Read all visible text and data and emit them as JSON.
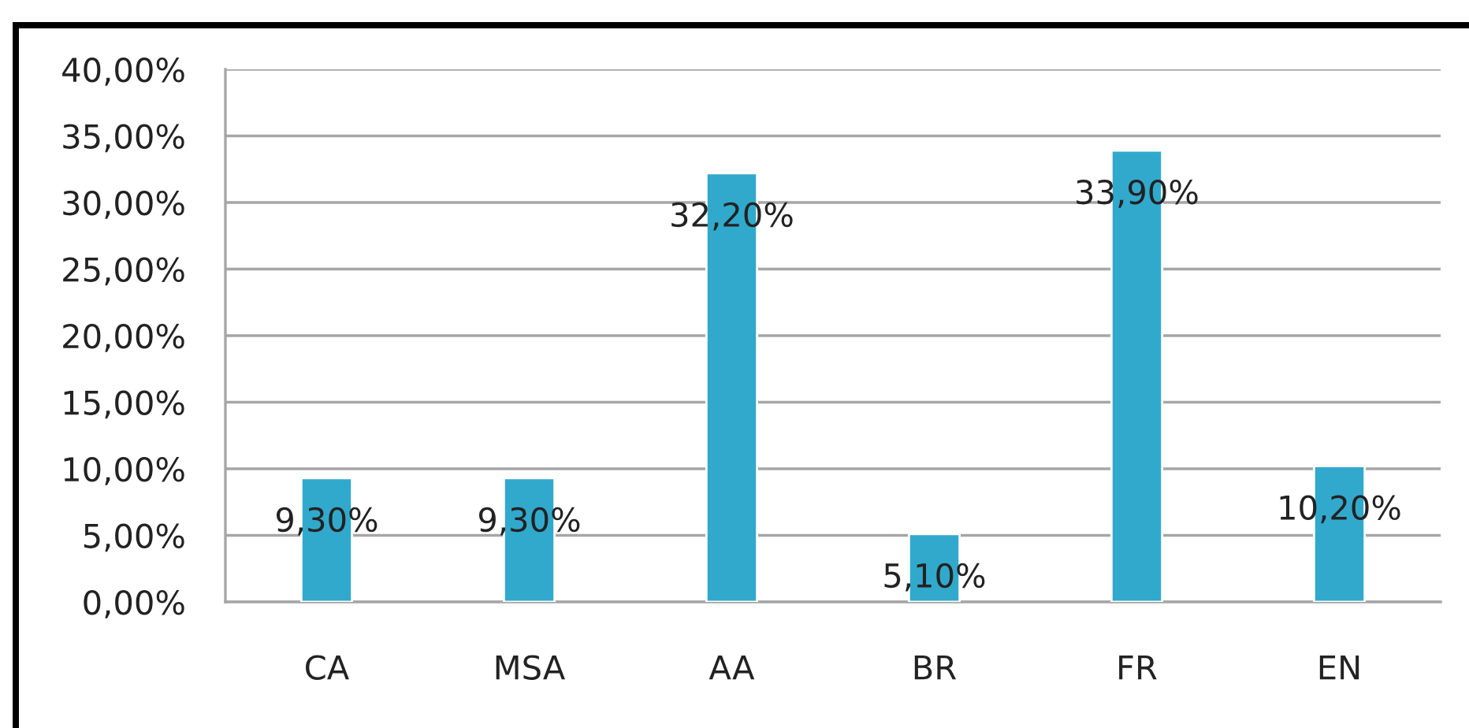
{
  "chart_data": {
    "type": "bar",
    "categories": [
      "CA",
      "MSA",
      "AA",
      "BR",
      "FR",
      "EN"
    ],
    "values": [
      9.3,
      9.3,
      32.2,
      5.1,
      33.9,
      10.2
    ],
    "value_labels": [
      "9,30%",
      "9,30%",
      "32,20%",
      "5,10%",
      "33,90%",
      "10,20%"
    ],
    "color": "#31a9cc",
    "ylim": [
      0,
      40
    ],
    "yticks": [
      {
        "value": 0,
        "label": "0,00%"
      },
      {
        "value": 5,
        "label": "5,00%"
      },
      {
        "value": 10,
        "label": "10,00%"
      },
      {
        "value": 15,
        "label": "15,00%"
      },
      {
        "value": 20,
        "label": "20,00%"
      },
      {
        "value": 25,
        "label": "25,00%"
      },
      {
        "value": 30,
        "label": "30,00%"
      },
      {
        "value": 35,
        "label": "35,00%"
      },
      {
        "value": 40,
        "label": "40,00%"
      }
    ],
    "grid": "y"
  }
}
